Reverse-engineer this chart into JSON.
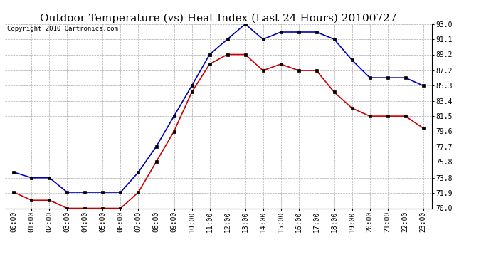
{
  "title": "Outdoor Temperature (vs) Heat Index (Last 24 Hours) 20100727",
  "copyright": "Copyright 2010 Cartronics.com",
  "hours": [
    "00:00",
    "01:00",
    "02:00",
    "03:00",
    "04:00",
    "05:00",
    "06:00",
    "07:00",
    "08:00",
    "09:00",
    "10:00",
    "11:00",
    "12:00",
    "13:00",
    "14:00",
    "15:00",
    "16:00",
    "17:00",
    "18:00",
    "19:00",
    "20:00",
    "21:00",
    "22:00",
    "23:00"
  ],
  "blue_data": [
    74.5,
    73.8,
    73.8,
    72.0,
    72.0,
    72.0,
    72.0,
    74.5,
    77.7,
    81.5,
    85.3,
    89.2,
    91.1,
    93.0,
    91.1,
    92.0,
    92.0,
    92.0,
    91.1,
    88.5,
    86.3,
    86.3,
    86.3,
    85.3
  ],
  "red_data": [
    72.0,
    71.0,
    71.0,
    70.0,
    70.0,
    70.0,
    70.0,
    72.0,
    75.8,
    79.6,
    84.5,
    88.0,
    89.2,
    89.2,
    87.2,
    88.0,
    87.2,
    87.2,
    84.5,
    82.5,
    81.5,
    81.5,
    81.5,
    80.0
  ],
  "ylim": [
    70.0,
    93.0
  ],
  "yticks": [
    70.0,
    71.9,
    73.8,
    75.8,
    77.7,
    79.6,
    81.5,
    83.4,
    85.3,
    87.2,
    89.2,
    91.1,
    93.0
  ],
  "blue_color": "#0000bb",
  "red_color": "#cc0000",
  "bg_color": "#ffffff",
  "grid_color": "#aaaaaa",
  "title_fontsize": 11,
  "tick_fontsize": 7,
  "copyright_fontsize": 6.5
}
